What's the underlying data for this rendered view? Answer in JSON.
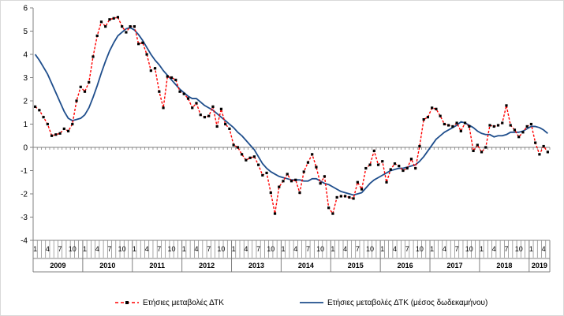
{
  "chart_data": {
    "type": "line",
    "ylim": [
      -4,
      6
    ],
    "yticks": [
      -4,
      -3,
      -2,
      -1,
      0,
      1,
      2,
      3,
      4,
      5,
      6
    ],
    "month_ticks": [
      "1",
      "4",
      "7",
      "10"
    ],
    "years": [
      "2009",
      "2010",
      "2011",
      "2012",
      "2013",
      "2014",
      "2015",
      "2016",
      "2017",
      "2018",
      "2019"
    ],
    "x_start": "2009-01",
    "grid": false,
    "legend_position": "bottom",
    "series": [
      {
        "name": "Ετήσιες μεταβολές ΔΤΚ",
        "color": "#ff0000",
        "style": "dashed-with-markers",
        "values": [
          1.75,
          1.6,
          1.3,
          1.0,
          0.5,
          0.55,
          0.6,
          0.8,
          0.7,
          1.0,
          2.0,
          2.6,
          2.4,
          2.8,
          3.9,
          4.8,
          5.4,
          5.2,
          5.5,
          5.55,
          5.6,
          5.2,
          4.95,
          5.2,
          5.2,
          4.45,
          4.5,
          4.0,
          3.3,
          3.4,
          2.4,
          1.7,
          3.05,
          3.0,
          2.9,
          2.4,
          2.3,
          2.1,
          1.7,
          1.9,
          1.4,
          1.3,
          1.35,
          1.75,
          0.9,
          1.65,
          1.0,
          0.8,
          0.1,
          0.0,
          -0.3,
          -0.55,
          -0.45,
          -0.4,
          -0.75,
          -1.2,
          -1.1,
          -1.95,
          -2.85,
          -1.7,
          -1.45,
          -1.15,
          -1.45,
          -1.4,
          -1.95,
          -1.05,
          -0.65,
          -0.3,
          -0.85,
          -1.55,
          -1.25,
          -2.6,
          -2.85,
          -2.15,
          -2.1,
          -2.1,
          -2.15,
          -2.2,
          -1.5,
          -1.8,
          -0.9,
          -0.75,
          -0.15,
          -0.75,
          -0.6,
          -1.5,
          -0.95,
          -0.7,
          -0.8,
          -1.0,
          -0.9,
          -0.5,
          -0.9,
          0.05,
          1.2,
          1.3,
          1.7,
          1.65,
          1.35,
          1.0,
          0.95,
          0.9,
          1.05,
          0.7,
          1.05,
          0.9,
          -0.15,
          0.1,
          -0.2,
          0.0,
          0.95,
          0.9,
          0.95,
          1.05,
          1.8,
          0.95,
          0.75,
          0.45,
          0.65,
          0.9,
          1.0,
          0.2,
          -0.3,
          0.05,
          -0.2
        ]
      },
      {
        "name": "Ετήσιες μεταβολές ΔΤΚ (μέσος δωδεκαμήνου)",
        "color": "#1f4e8c",
        "style": "solid",
        "values": [
          4.0,
          3.75,
          3.45,
          3.15,
          2.75,
          2.35,
          1.95,
          1.55,
          1.25,
          1.15,
          1.2,
          1.25,
          1.4,
          1.7,
          2.15,
          2.65,
          3.2,
          3.7,
          4.15,
          4.5,
          4.8,
          4.95,
          5.1,
          5.15,
          5.05,
          4.85,
          4.6,
          4.3,
          4.0,
          3.75,
          3.55,
          3.3,
          3.1,
          2.9,
          2.7,
          2.5,
          2.35,
          2.2,
          2.1,
          2.1,
          1.95,
          1.8,
          1.7,
          1.6,
          1.45,
          1.3,
          1.15,
          1.0,
          0.85,
          0.65,
          0.5,
          0.3,
          0.1,
          -0.1,
          -0.4,
          -0.7,
          -0.9,
          -1.05,
          -1.15,
          -1.25,
          -1.3,
          -1.35,
          -1.4,
          -1.4,
          -1.4,
          -1.45,
          -1.45,
          -1.35,
          -1.35,
          -1.45,
          -1.55,
          -1.6,
          -1.7,
          -1.8,
          -1.9,
          -1.95,
          -2.0,
          -2.05,
          -2.0,
          -1.95,
          -1.75,
          -1.55,
          -1.4,
          -1.3,
          -1.2,
          -1.1,
          -1.0,
          -0.95,
          -0.9,
          -0.9,
          -0.85,
          -0.8,
          -0.75,
          -0.6,
          -0.4,
          -0.15,
          0.1,
          0.35,
          0.5,
          0.65,
          0.75,
          0.85,
          0.95,
          1.1,
          1.05,
          0.95,
          0.85,
          0.7,
          0.6,
          0.55,
          0.55,
          0.45,
          0.5,
          0.5,
          0.55,
          0.65,
          0.65,
          0.65,
          0.7,
          0.8,
          0.9,
          0.9,
          0.85,
          0.75,
          0.6
        ]
      }
    ]
  }
}
